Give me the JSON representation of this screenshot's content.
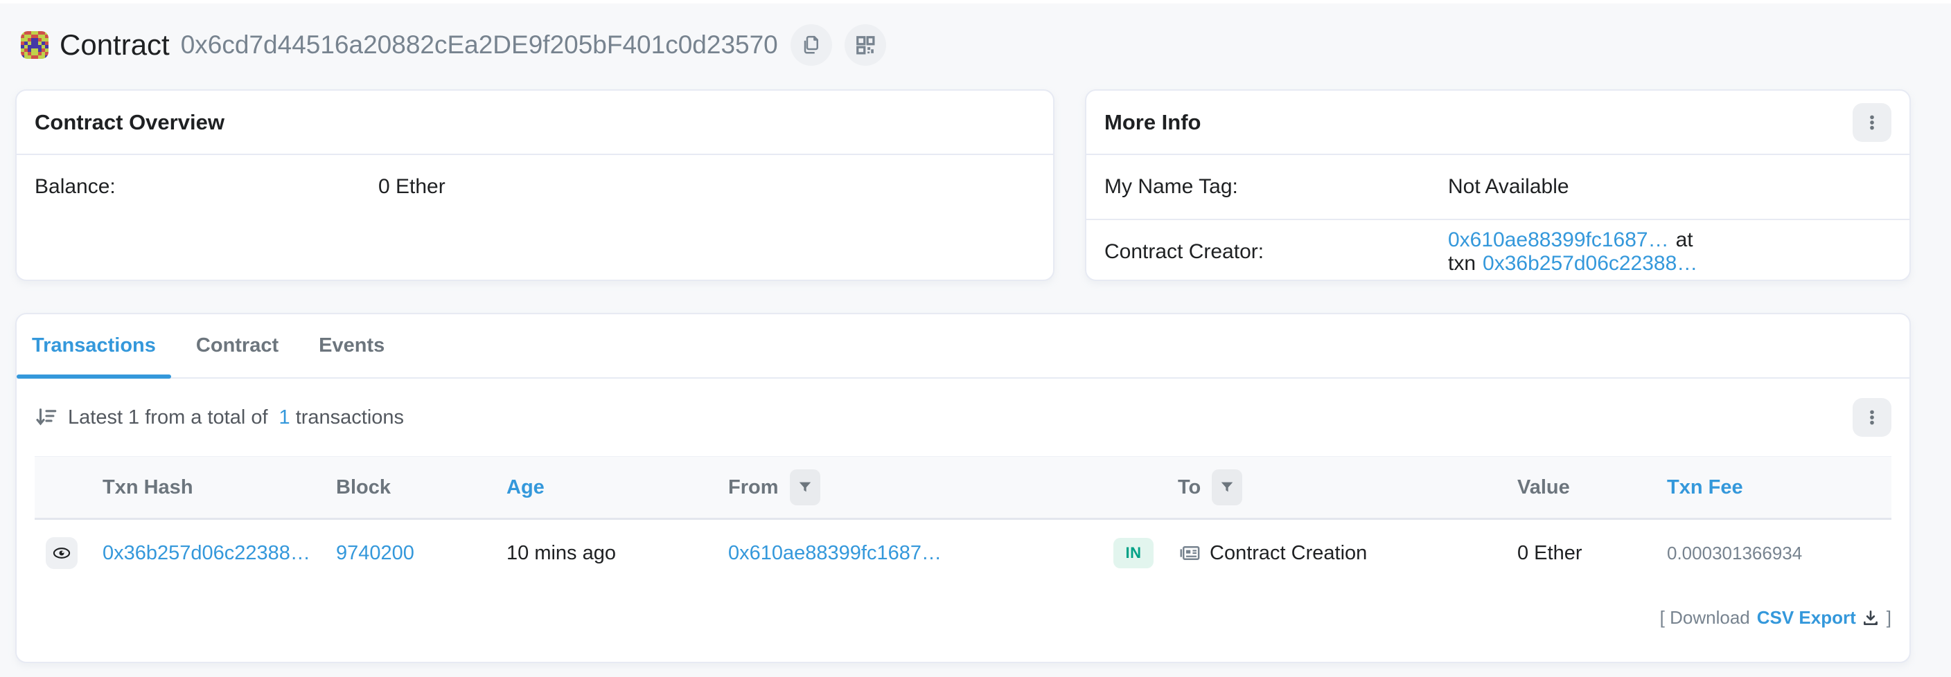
{
  "page": {
    "title": "Contract",
    "address": "0x6cd7d44516a20882cEa2DE9f205bF401c0d23570"
  },
  "icons": {
    "copy": "copy-icon",
    "qr": "qr-code-icon",
    "kebab": "kebab-menu-icon",
    "sort": "sort-amount-down-icon",
    "eye": "eye-icon",
    "filter": "filter-funnel-icon",
    "contract_doc": "contract-doc-icon",
    "download": "download-icon"
  },
  "identicon": {
    "colors": {
      "G": "#bfd24b",
      "R": "#cf5148",
      "B": "#4438a6"
    },
    "pattern": [
      "GRRGGRRG",
      "RGGRRGGR",
      "GGRBBRGG",
      "RBGBBGBR",
      "BGBBBBGB",
      "GRBGGBRG",
      "RGRGGRGR",
      "BGGRRGGB"
    ]
  },
  "overview_card": {
    "title": "Contract Overview",
    "balance_label": "Balance:",
    "balance_value": "0 Ether"
  },
  "more_info_card": {
    "title": "More Info",
    "name_tag_label": "My Name Tag:",
    "name_tag_value": "Not Available",
    "creator_label": "Contract Creator:",
    "creator_address": "0x610ae88399fc1687…",
    "creator_separator": "at txn",
    "creator_txn": "0x36b257d06c22388…"
  },
  "tabs": [
    {
      "label": "Transactions",
      "active": true
    },
    {
      "label": "Contract",
      "active": false
    },
    {
      "label": "Events",
      "active": false
    }
  ],
  "toolbar": {
    "latest_prefix": "Latest 1 from a total of",
    "total_count": "1",
    "latest_suffix": "transactions"
  },
  "table": {
    "headers": {
      "txn_hash": "Txn Hash",
      "block": "Block",
      "age": "Age",
      "from": "From",
      "to": "To",
      "value": "Value",
      "txn_fee": "Txn Fee"
    },
    "rows": [
      {
        "txn_hash": "0x36b257d06c22388…",
        "block": "9740200",
        "age": "10 mins ago",
        "from": "0x610ae88399fc1687…",
        "direction": "IN",
        "to": "Contract Creation",
        "value": "0 Ether",
        "txn_fee": "0.000301366934"
      }
    ]
  },
  "footer": {
    "download_prefix": "[ Download",
    "csv_label": "CSV Export",
    "download_suffix": "]"
  },
  "colors": {
    "accent_blue": "#3498db",
    "badge_green_text": "#00a186",
    "badge_green_bg": "#e2f5ee",
    "card_border": "#e7eaf3",
    "page_bg": "#f7f8fa",
    "muted_text": "#77838f",
    "dark_text": "#1e2022"
  }
}
